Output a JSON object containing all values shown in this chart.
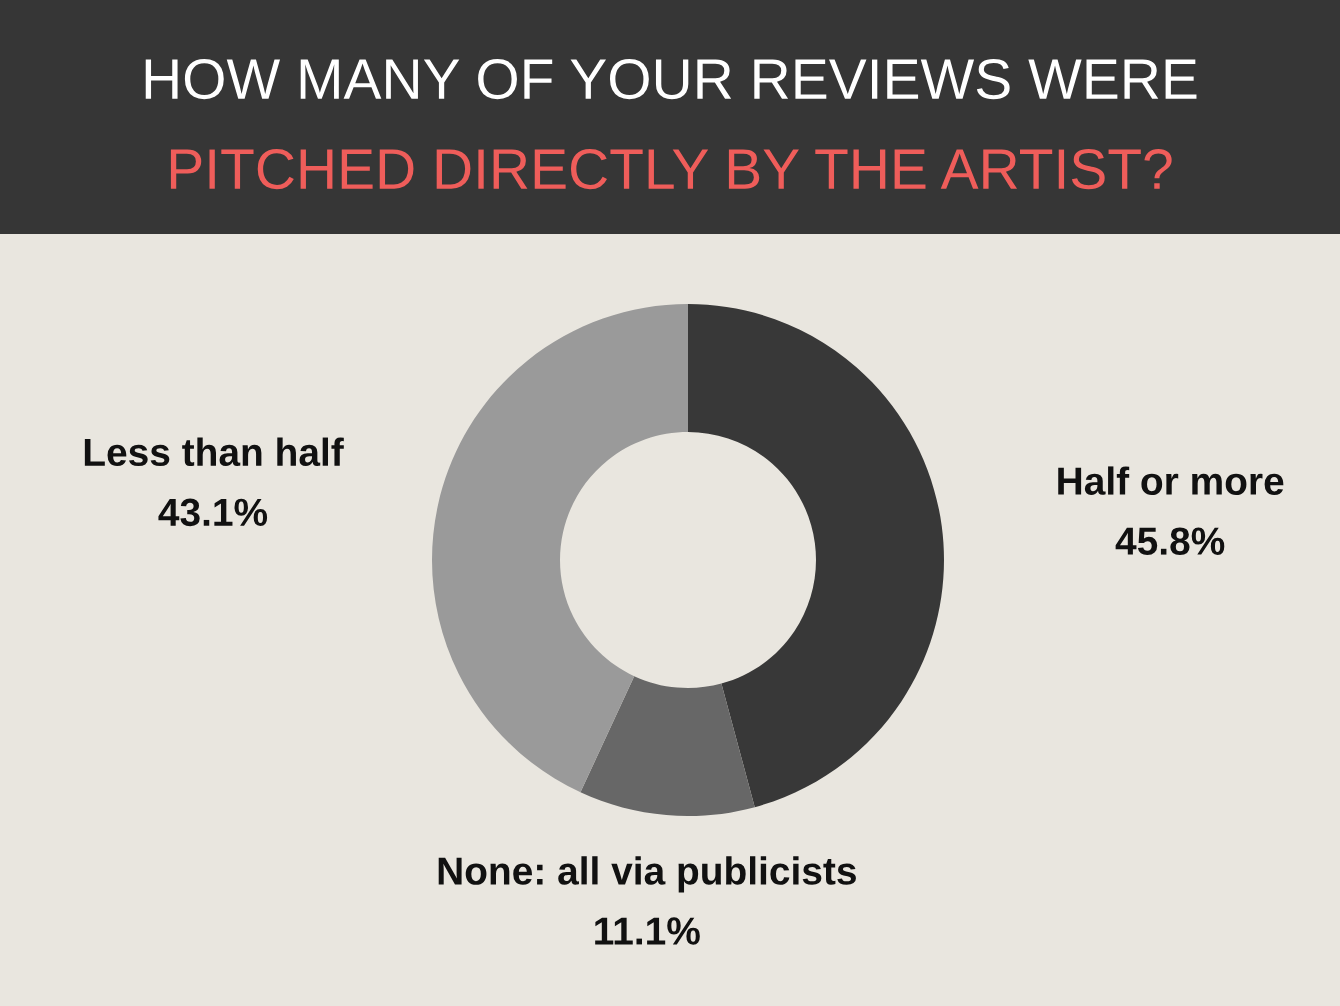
{
  "chart_data": {
    "type": "donut",
    "title": "HOW MANY OF YOUR REVIEWS WERE",
    "subtitle": "PITCHED DIRECTLY BY THE ARTIST?",
    "categories": [
      "Half or more",
      "None: all via publicists",
      "Less than half"
    ],
    "values": [
      45.8,
      11.1,
      43.1
    ],
    "colors": [
      "#383838",
      "#676767",
      "#9a9a9a"
    ],
    "value_labels": [
      "45.8%",
      "11.1%",
      "43.1%"
    ]
  }
}
